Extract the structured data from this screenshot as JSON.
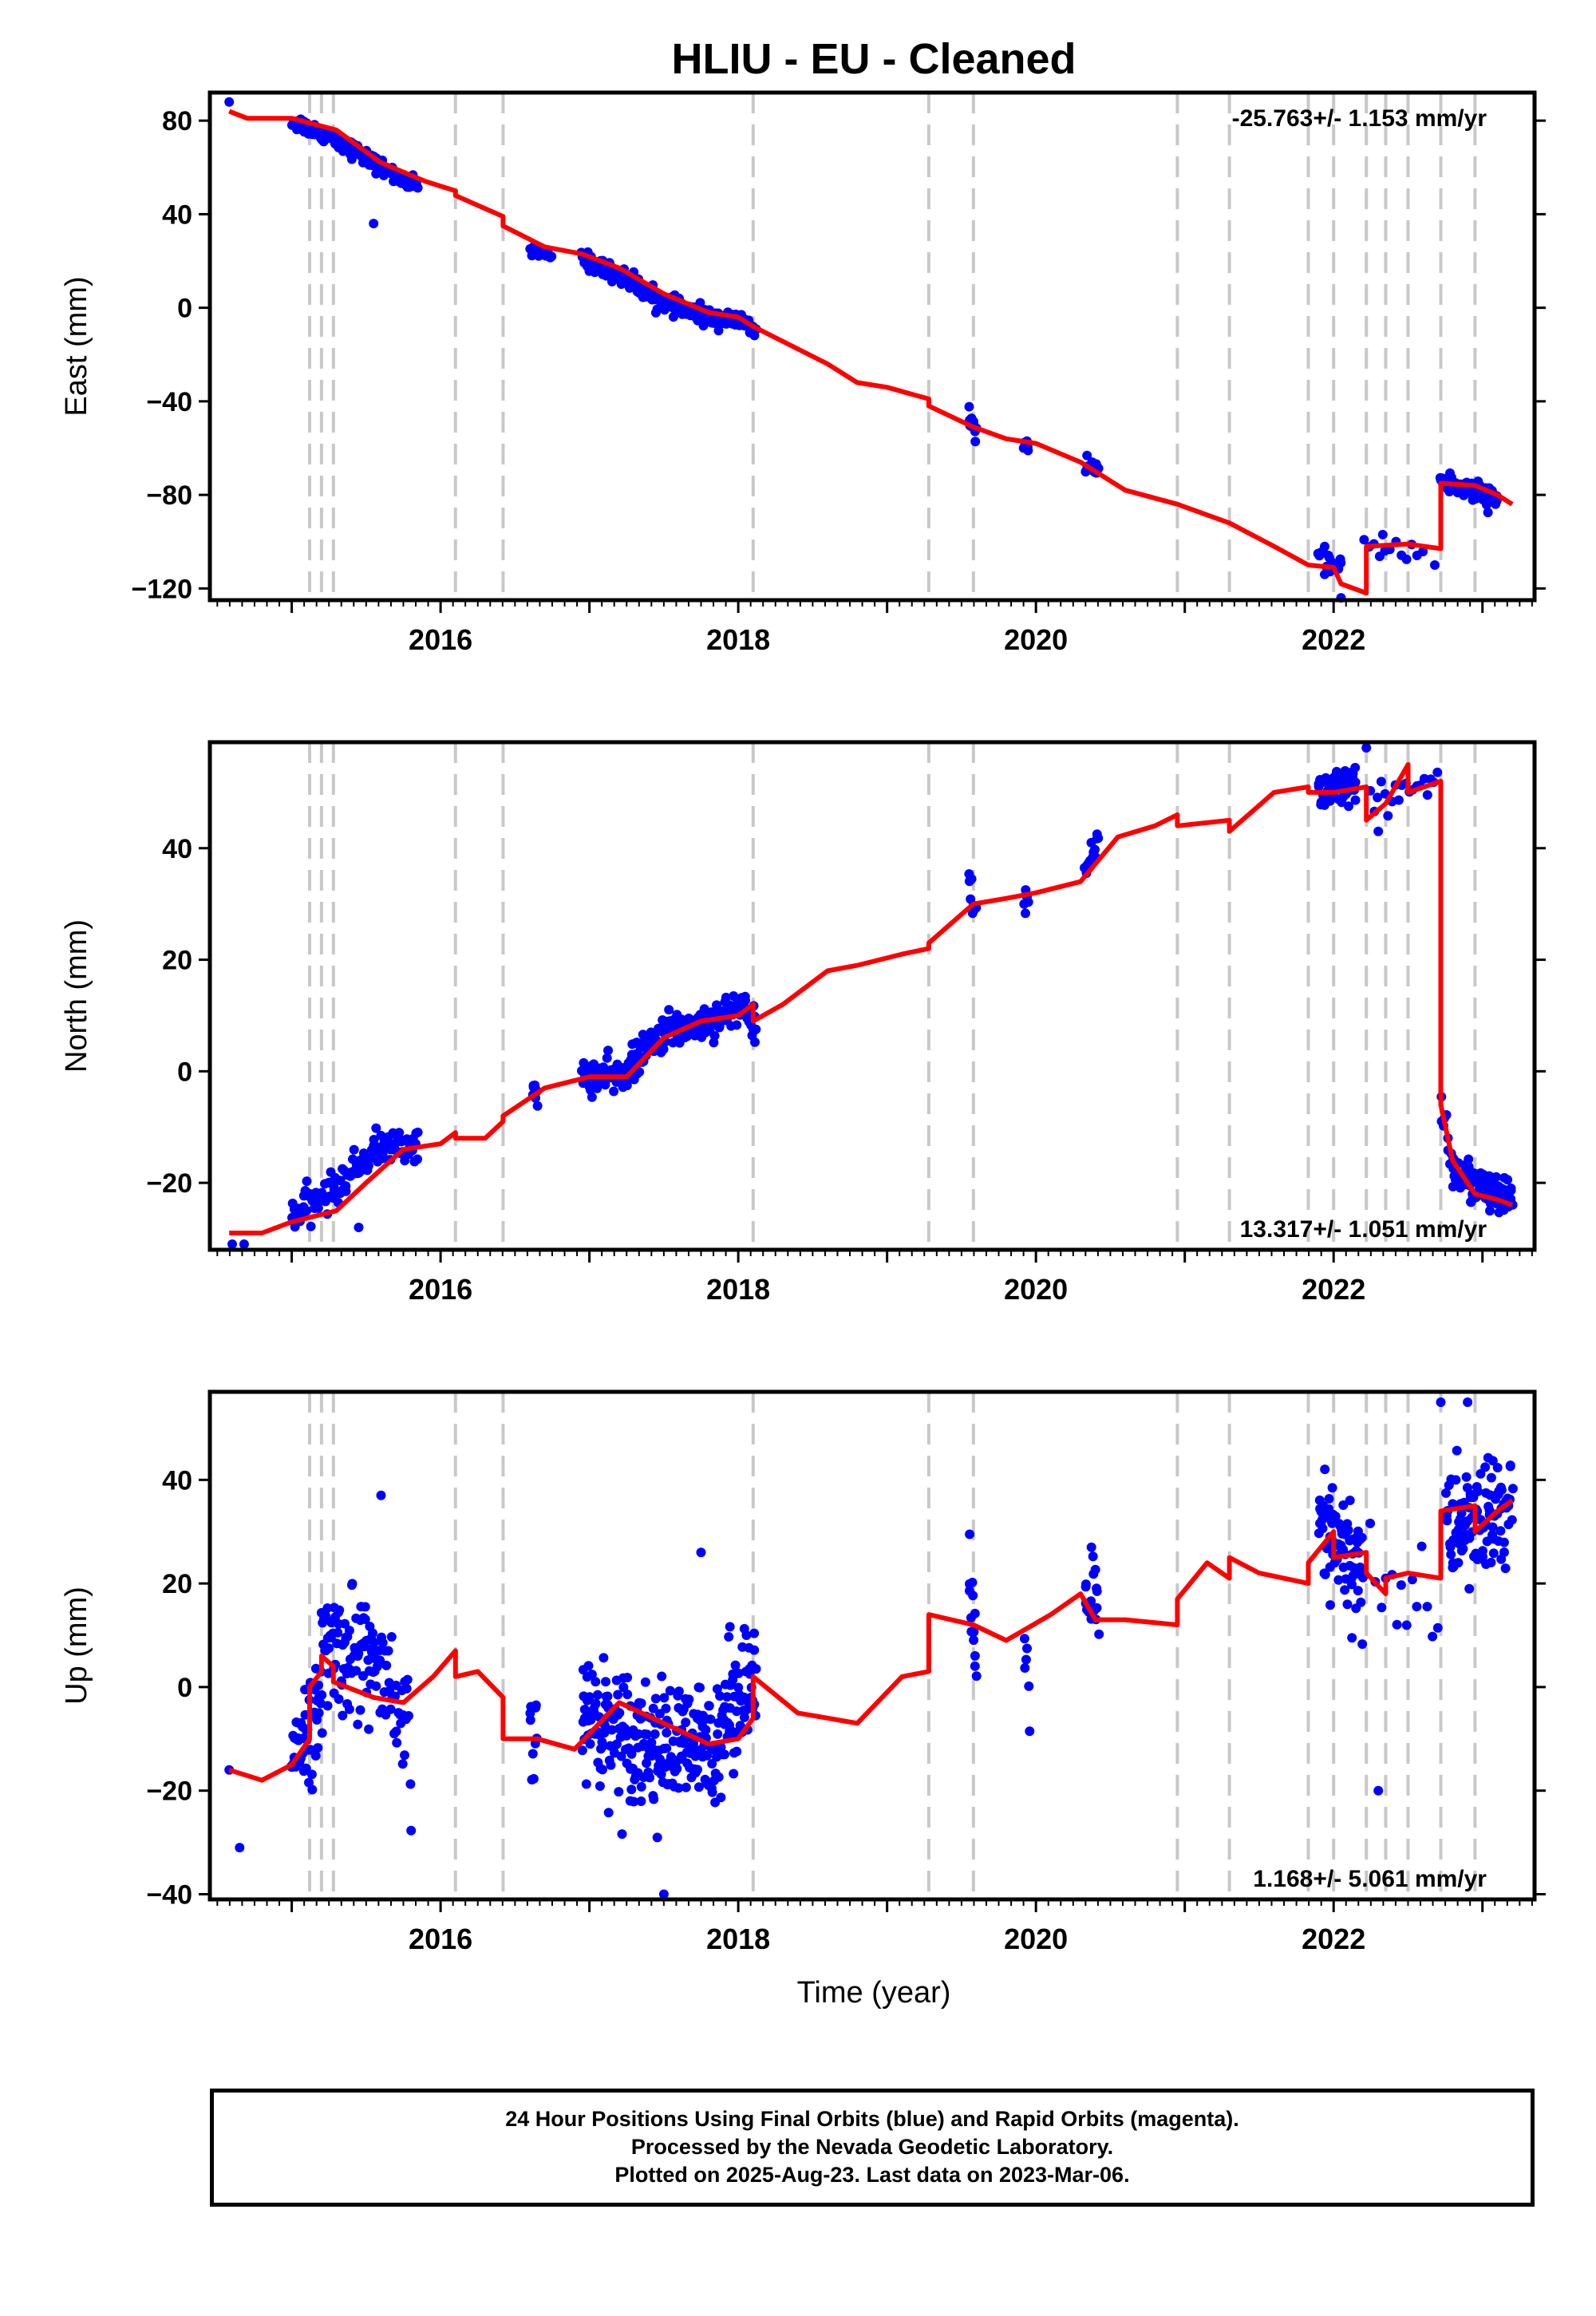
{
  "title": "HLIU  - EU - Cleaned",
  "xlabel": "Time (year)",
  "colors": {
    "data_points": "#0000ff",
    "model_line": "#ff0000",
    "event_lines": "#c8c8c8",
    "frame": "#000000"
  },
  "footer": {
    "line1": "24 Hour Positions Using Final Orbits (blue) and Rapid Orbits (magenta).",
    "line2": "Processed by the Nevada Geodetic Laboratory.",
    "line3": "Plotted on 2025-Aug-23. Last data on 2023-Mar-06."
  },
  "chart_data": [
    {
      "type": "scatter",
      "panel": "east",
      "ylabel": "East (mm)",
      "rate_label": "-25.763+/- 1.153 mm/yr",
      "rate_position": "top-right",
      "xlim": [
        2014.45,
        2023.35
      ],
      "ylim": [
        -125,
        92
      ],
      "yticks": [
        80,
        40,
        0,
        -40,
        -80,
        -120
      ],
      "ytick_labels": [
        "80",
        "40",
        "0",
        "−40",
        "−80",
        "−120"
      ],
      "xticks": [
        2016,
        2018,
        2020,
        2022
      ],
      "xtick_labels": [
        "2016",
        "2018",
        "2020",
        "2022"
      ],
      "event_lines": [
        2015.12,
        2015.2,
        2015.28,
        2016.1,
        2016.42,
        2018.1,
        2019.28,
        2019.58,
        2020.95,
        2021.3,
        2021.83,
        2022.0,
        2022.22,
        2022.35,
        2022.5,
        2022.72,
        2022.95
      ],
      "data_segments": [
        {
          "x": [
            2015.0,
            2015.3,
            2015.5,
            2015.7,
            2015.85
          ],
          "y": [
            80,
            72,
            64,
            56,
            52
          ],
          "spread": 3,
          "n": 110
        },
        {
          "x": [
            2016.6,
            2016.75
          ],
          "y": [
            24,
            22
          ],
          "spread": 2,
          "n": 12
        },
        {
          "x": [
            2016.95,
            2017.2,
            2017.5,
            2017.8,
            2018.05,
            2018.12
          ],
          "y": [
            21,
            14,
            2,
            -4,
            -6,
            -12
          ],
          "spread": 3,
          "n": 260
        },
        {
          "x": [
            2019.55,
            2019.6
          ],
          "y": [
            -46,
            -54
          ],
          "spread": 3,
          "n": 10
        },
        {
          "x": [
            2019.92,
            2019.95
          ],
          "y": [
            -58,
            -60
          ],
          "spread": 2,
          "n": 6
        },
        {
          "x": [
            2020.33,
            2020.42
          ],
          "y": [
            -66,
            -72
          ],
          "spread": 3,
          "n": 16
        },
        {
          "x": [
            2021.9,
            2022.05
          ],
          "y": [
            -106,
            -113
          ],
          "spread": 4,
          "n": 22
        },
        {
          "x": [
            2022.2,
            2022.6
          ],
          "y": [
            -101,
            -104
          ],
          "spread": 4,
          "n": 12
        },
        {
          "x": [
            2022.72,
            2023.1
          ],
          "y": [
            -74,
            -82
          ],
          "spread": 4,
          "n": 90
        }
      ],
      "outliers": [
        [
          2014.58,
          88
        ],
        [
          2015.55,
          36
        ],
        [
          2022.05,
          -124
        ],
        [
          2022.33,
          -97
        ],
        [
          2022.68,
          -110
        ]
      ],
      "model": [
        [
          2014.58,
          84
        ],
        [
          2014.7,
          81
        ],
        [
          2015.0,
          81
        ],
        [
          2015.3,
          76
        ],
        [
          2015.6,
          62
        ],
        [
          2015.9,
          54
        ],
        [
          2016.1,
          50
        ],
        [
          2016.1,
          48
        ],
        [
          2016.42,
          39
        ],
        [
          2016.42,
          35
        ],
        [
          2016.7,
          26
        ],
        [
          2016.95,
          23
        ],
        [
          2017.2,
          17
        ],
        [
          2017.5,
          6
        ],
        [
          2017.8,
          -2
        ],
        [
          2018.0,
          -4
        ],
        [
          2018.1,
          -8
        ],
        [
          2018.6,
          -24
        ],
        [
          2018.8,
          -32
        ],
        [
          2019.0,
          -34
        ],
        [
          2019.28,
          -39
        ],
        [
          2019.28,
          -42
        ],
        [
          2019.58,
          -51
        ],
        [
          2019.8,
          -56
        ],
        [
          2020.0,
          -58
        ],
        [
          2020.3,
          -66
        ],
        [
          2020.6,
          -78
        ],
        [
          2020.95,
          -84
        ],
        [
          2021.3,
          -92
        ],
        [
          2021.6,
          -102
        ],
        [
          2021.83,
          -110
        ],
        [
          2022.0,
          -111
        ],
        [
          2022.05,
          -118
        ],
        [
          2022.22,
          -122
        ],
        [
          2022.22,
          -102
        ],
        [
          2022.5,
          -101
        ],
        [
          2022.72,
          -103
        ],
        [
          2022.72,
          -75
        ],
        [
          2022.95,
          -76
        ],
        [
          2023.1,
          -80
        ],
        [
          2023.2,
          -84
        ]
      ]
    },
    {
      "type": "scatter",
      "panel": "north",
      "ylabel": "North (mm)",
      "rate_label": "13.317+/- 1.051 mm/yr",
      "rate_position": "bottom-right",
      "xlim": [
        2014.45,
        2023.35
      ],
      "ylim": [
        -32,
        59
      ],
      "yticks": [
        40,
        20,
        0,
        -20
      ],
      "ytick_labels": [
        "40",
        "20",
        "0",
        "−20"
      ],
      "xticks": [
        2016,
        2018,
        2020,
        2022
      ],
      "xtick_labels": [
        "2016",
        "2018",
        "2020",
        "2022"
      ],
      "event_lines": [
        2015.12,
        2015.2,
        2015.28,
        2016.1,
        2016.42,
        2018.1,
        2019.28,
        2019.58,
        2020.95,
        2021.3,
        2021.83,
        2022.0,
        2022.22,
        2022.35,
        2022.5,
        2022.72,
        2022.95
      ],
      "data_segments": [
        {
          "x": [
            2015.0,
            2015.3,
            2015.55,
            2015.85
          ],
          "y": [
            -26,
            -21,
            -14,
            -13
          ],
          "spread": 2.5,
          "n": 130
        },
        {
          "x": [
            2016.62,
            2016.65
          ],
          "y": [
            -3,
            -5
          ],
          "spread": 1.5,
          "n": 8
        },
        {
          "x": [
            2016.95,
            2017.2,
            2017.5,
            2017.8,
            2018.05,
            2018.12
          ],
          "y": [
            -1,
            -1,
            7,
            9,
            12,
            7
          ],
          "spread": 2.5,
          "n": 270
        },
        {
          "x": [
            2019.55,
            2019.6
          ],
          "y": [
            34,
            28
          ],
          "spread": 2,
          "n": 10
        },
        {
          "x": [
            2019.92,
            2019.95
          ],
          "y": [
            31,
            30
          ],
          "spread": 1.5,
          "n": 6
        },
        {
          "x": [
            2020.33,
            2020.42
          ],
          "y": [
            36,
            42
          ],
          "spread": 2,
          "n": 16
        },
        {
          "x": [
            2021.9,
            2022.15
          ],
          "y": [
            50,
            51
          ],
          "spread": 3,
          "n": 80
        },
        {
          "x": [
            2022.25,
            2022.7
          ],
          "y": [
            47,
            53
          ],
          "spread": 3,
          "n": 20
        },
        {
          "x": [
            2022.72,
            2022.8
          ],
          "y": [
            -6,
            -16
          ],
          "spread": 3,
          "n": 10
        },
        {
          "x": [
            2022.8,
            2023.2
          ],
          "y": [
            -18,
            -24
          ],
          "spread": 3,
          "n": 110
        }
      ],
      "outliers": [
        [
          2014.6,
          -31
        ],
        [
          2014.68,
          -31
        ],
        [
          2015.45,
          -28
        ],
        [
          2022.22,
          58
        ],
        [
          2022.3,
          43
        ]
      ],
      "model": [
        [
          2014.58,
          -29
        ],
        [
          2014.8,
          -29
        ],
        [
          2015.0,
          -27
        ],
        [
          2015.3,
          -25
        ],
        [
          2015.5,
          -20
        ],
        [
          2015.75,
          -14
        ],
        [
          2016.0,
          -13
        ],
        [
          2016.1,
          -11
        ],
        [
          2016.1,
          -12
        ],
        [
          2016.3,
          -12
        ],
        [
          2016.42,
          -9
        ],
        [
          2016.42,
          -8
        ],
        [
          2016.7,
          -3
        ],
        [
          2017.0,
          -1
        ],
        [
          2017.25,
          -1
        ],
        [
          2017.5,
          6
        ],
        [
          2017.75,
          9
        ],
        [
          2018.0,
          10
        ],
        [
          2018.1,
          12
        ],
        [
          2018.1,
          9
        ],
        [
          2018.3,
          12
        ],
        [
          2018.6,
          18
        ],
        [
          2018.8,
          19
        ],
        [
          2019.1,
          21
        ],
        [
          2019.28,
          22
        ],
        [
          2019.28,
          23
        ],
        [
          2019.58,
          30
        ],
        [
          2019.8,
          31
        ],
        [
          2020.0,
          32
        ],
        [
          2020.3,
          34
        ],
        [
          2020.55,
          42
        ],
        [
          2020.8,
          44
        ],
        [
          2020.95,
          46
        ],
        [
          2020.95,
          44
        ],
        [
          2021.3,
          45
        ],
        [
          2021.3,
          43
        ],
        [
          2021.6,
          50
        ],
        [
          2021.83,
          51
        ],
        [
          2021.83,
          50
        ],
        [
          2022.0,
          50
        ],
        [
          2022.22,
          51
        ],
        [
          2022.22,
          45
        ],
        [
          2022.35,
          48
        ],
        [
          2022.5,
          55
        ],
        [
          2022.5,
          50
        ],
        [
          2022.72,
          52
        ],
        [
          2022.72,
          -6
        ],
        [
          2022.8,
          -16
        ],
        [
          2022.95,
          -22
        ],
        [
          2023.1,
          -23
        ],
        [
          2023.2,
          -24
        ]
      ]
    },
    {
      "type": "scatter",
      "panel": "up",
      "ylabel": "Up (mm)",
      "rate_label": "1.168+/- 5.061 mm/yr",
      "rate_position": "bottom-right",
      "xlim": [
        2014.45,
        2023.35
      ],
      "ylim": [
        -41,
        57
      ],
      "yticks": [
        40,
        20,
        0,
        -20,
        -40
      ],
      "ytick_labels": [
        "40",
        "20",
        "0",
        "−20",
        "−40"
      ],
      "xticks": [
        2016,
        2018,
        2020,
        2022
      ],
      "xtick_labels": [
        "2016",
        "2018",
        "2020",
        "2022"
      ],
      "event_lines": [
        2015.12,
        2015.2,
        2015.28,
        2016.1,
        2016.42,
        2018.1,
        2019.28,
        2019.58,
        2020.95,
        2021.3,
        2021.83,
        2022.0,
        2022.22,
        2022.35,
        2022.5,
        2022.72,
        2022.95
      ],
      "data_segments": [
        {
          "x": [
            2015.0,
            2015.2
          ],
          "y": [
            -10,
            -6
          ],
          "spread": 8,
          "n": 50
        },
        {
          "x": [
            2015.2,
            2015.55
          ],
          "y": [
            8,
            6
          ],
          "spread": 10,
          "n": 80
        },
        {
          "x": [
            2015.55,
            2015.8
          ],
          "y": [
            4,
            -12
          ],
          "spread": 10,
          "n": 40
        },
        {
          "x": [
            2016.6,
            2016.65
          ],
          "y": [
            -10,
            -12
          ],
          "spread": 8,
          "n": 10
        },
        {
          "x": [
            2016.95,
            2017.5,
            2017.8,
            2018.05,
            2018.12
          ],
          "y": [
            -5,
            -12,
            -12,
            2,
            0
          ],
          "spread": 10,
          "n": 300
        },
        {
          "x": [
            2019.55,
            2019.6
          ],
          "y": [
            14,
            6
          ],
          "spread": 10,
          "n": 14
        },
        {
          "x": [
            2019.92,
            2019.96
          ],
          "y": [
            6,
            0
          ],
          "spread": 6,
          "n": 6
        },
        {
          "x": [
            2020.33,
            2020.42
          ],
          "y": [
            20,
            12
          ],
          "spread": 10,
          "n": 20
        },
        {
          "x": [
            2021.9,
            2022.2
          ],
          "y": [
            30,
            22
          ],
          "spread": 10,
          "n": 80
        },
        {
          "x": [
            2022.25,
            2022.7
          ],
          "y": [
            22,
            18
          ],
          "spread": 12,
          "n": 14
        },
        {
          "x": [
            2022.75,
            2023.2
          ],
          "y": [
            30,
            34
          ],
          "spread": 10,
          "n": 110
        }
      ],
      "outliers": [
        [
          2014.58,
          -16
        ],
        [
          2014.65,
          -31
        ],
        [
          2015.6,
          37
        ],
        [
          2017.5,
          -40
        ],
        [
          2017.75,
          26
        ],
        [
          2022.3,
          -20
        ],
        [
          2022.72,
          55
        ],
        [
          2022.9,
          55
        ]
      ],
      "model": [
        [
          2014.58,
          -16
        ],
        [
          2014.8,
          -18
        ],
        [
          2015.0,
          -15
        ],
        [
          2015.12,
          -10
        ],
        [
          2015.12,
          0
        ],
        [
          2015.2,
          3
        ],
        [
          2015.2,
          6
        ],
        [
          2015.28,
          4
        ],
        [
          2015.28,
          1
        ],
        [
          2015.55,
          -2
        ],
        [
          2015.75,
          -3
        ],
        [
          2015.95,
          2
        ],
        [
          2016.1,
          7
        ],
        [
          2016.1,
          2
        ],
        [
          2016.25,
          3
        ],
        [
          2016.42,
          -2
        ],
        [
          2016.42,
          -10
        ],
        [
          2016.65,
          -10
        ],
        [
          2016.9,
          -12
        ],
        [
          2017.2,
          -3
        ],
        [
          2017.5,
          -7
        ],
        [
          2017.8,
          -11
        ],
        [
          2018.0,
          -10
        ],
        [
          2018.1,
          -6
        ],
        [
          2018.1,
          2
        ],
        [
          2018.4,
          -5
        ],
        [
          2018.8,
          -7
        ],
        [
          2019.1,
          2
        ],
        [
          2019.28,
          3
        ],
        [
          2019.28,
          14
        ],
        [
          2019.58,
          12
        ],
        [
          2019.8,
          9
        ],
        [
          2020.1,
          14
        ],
        [
          2020.3,
          18
        ],
        [
          2020.4,
          13
        ],
        [
          2020.6,
          13
        ],
        [
          2020.95,
          12
        ],
        [
          2020.95,
          17
        ],
        [
          2021.15,
          24
        ],
        [
          2021.3,
          21
        ],
        [
          2021.3,
          25
        ],
        [
          2021.5,
          22
        ],
        [
          2021.83,
          20
        ],
        [
          2021.83,
          24
        ],
        [
          2022.0,
          30
        ],
        [
          2022.0,
          25
        ],
        [
          2022.22,
          26
        ],
        [
          2022.22,
          22
        ],
        [
          2022.35,
          18
        ],
        [
          2022.35,
          21
        ],
        [
          2022.5,
          22
        ],
        [
          2022.72,
          21
        ],
        [
          2022.72,
          34
        ],
        [
          2022.95,
          35
        ],
        [
          2022.95,
          30
        ],
        [
          2023.1,
          34
        ],
        [
          2023.2,
          36
        ]
      ]
    }
  ]
}
